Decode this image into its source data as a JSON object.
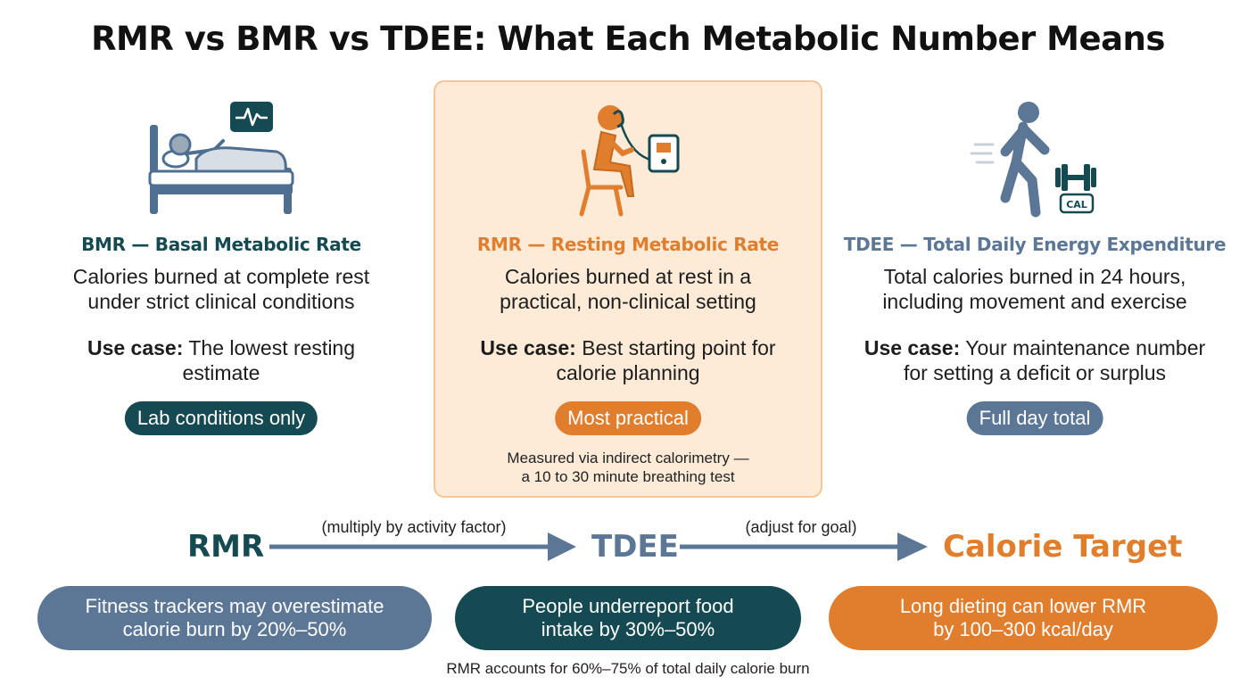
{
  "title": "RMR vs BMR vs TDEE: What Each Metabolic Number Means",
  "colors": {
    "teal": "#154a52",
    "orange": "#e07e2e",
    "slate": "#5c7696",
    "highlight_bg": "#fdebd8"
  },
  "columns": [
    {
      "icon": "sleeping-person-bed-monitor-icon",
      "heading": "BMR — Basal Metabolic Rate",
      "desc_line1": "Calories burned at complete rest",
      "desc_line2": "under strict clinical conditions",
      "usecase_label": "Use case:",
      "usecase_line1": "The lowest resting",
      "usecase_line2": "estimate",
      "pill": "Lab conditions only"
    },
    {
      "icon": "seated-person-breathing-mask-icon",
      "heading": "RMR — Resting Metabolic Rate",
      "desc_line1": "Calories burned at rest in a",
      "desc_line2": "practical, non-clinical setting",
      "usecase_label": "Use case:",
      "usecase_line1": "Best starting point for",
      "usecase_line2": "calorie planning",
      "pill": "Most practical",
      "note_line1": "Measured via indirect calorimetry —",
      "note_line2": "a 10 to 30 minute breathing test"
    },
    {
      "icon": "walking-person-dumbbell-cal-icon",
      "heading": "TDEE — Total Daily Energy Expenditure",
      "desc_line1": "Total calories burned in 24 hours,",
      "desc_line2": "including movement and exercise",
      "usecase_label": "Use case:",
      "usecase_line1": "Your maintenance number",
      "usecase_line2": "for setting a deficit or surplus",
      "pill": "Full day total",
      "icon_text": "CAL"
    }
  ],
  "flow": {
    "step1": "RMR",
    "arrow1": "(multiply by activity factor)",
    "step2": "TDEE",
    "arrow2": "(adjust for goal)",
    "step3": "Calorie Target"
  },
  "facts": [
    {
      "line1": "Fitness trackers may overestimate",
      "line2": "calorie burn by 20%–50%"
    },
    {
      "line1": "People underreport food",
      "line2": "intake by 30%–50%"
    },
    {
      "line1": "Long dieting can lower RMR",
      "line2": "by 100–300 kcal/day"
    }
  ],
  "footnote": "RMR accounts for 60%–75% of total daily calorie burn"
}
